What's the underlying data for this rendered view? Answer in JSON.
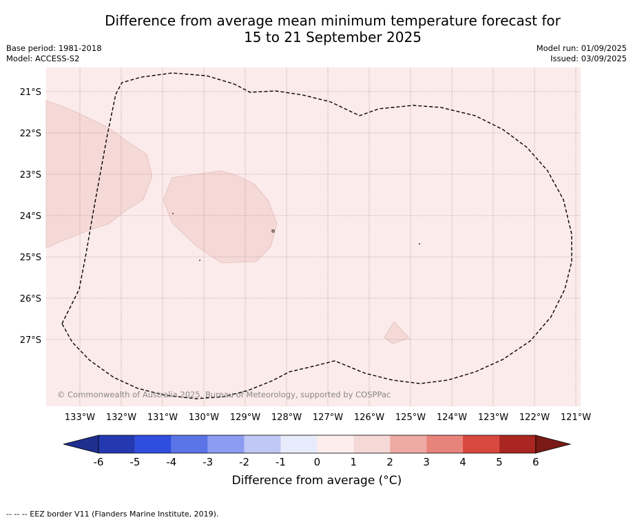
{
  "header": {
    "title_line1": "Difference from average mean minimum temperature forecast for",
    "title_line2": "15 to 21 September 2025",
    "base_period": "Base period: 1981-2018",
    "model": "Model: ACCESS-S2",
    "model_run": "Model run: 01/09/2025",
    "issued": "Issued: 03/09/2025"
  },
  "map": {
    "lat_labels": [
      "21°S",
      "22°S",
      "23°S",
      "24°S",
      "25°S",
      "26°S",
      "27°S"
    ],
    "lon_labels": [
      "133°W",
      "132°W",
      "131°W",
      "130°W",
      "129°W",
      "128°W",
      "127°W",
      "126°W",
      "125°W",
      "124°W",
      "123°W",
      "122°W",
      "121°W"
    ],
    "copyright": "© Commonwealth of Australia 2025, Bureau of Meteorology, supported by COSPPac",
    "background_fill": "#fbebea",
    "anomaly_fill": "#f5d9d7",
    "grid": true
  },
  "colorbar": {
    "title": "Difference from average (°C)",
    "ticks": [
      "-6",
      "-5",
      "-4",
      "-3",
      "-2",
      "-1",
      "0",
      "1",
      "2",
      "3",
      "4",
      "5",
      "6"
    ],
    "colors": [
      "#1f2f8f",
      "#2439b0",
      "#2f4ee0",
      "#5b74e6",
      "#8c9cf0",
      "#c0c8f6",
      "#e8ebfb",
      "#fdeeed",
      "#f5d9d6",
      "#eeaaa4",
      "#e8837c",
      "#d9483e",
      "#aa2620",
      "#7a1a16"
    ]
  },
  "footnote": "--  --  -- EEZ border V11 (Flanders Marine Institute, 2019)."
}
